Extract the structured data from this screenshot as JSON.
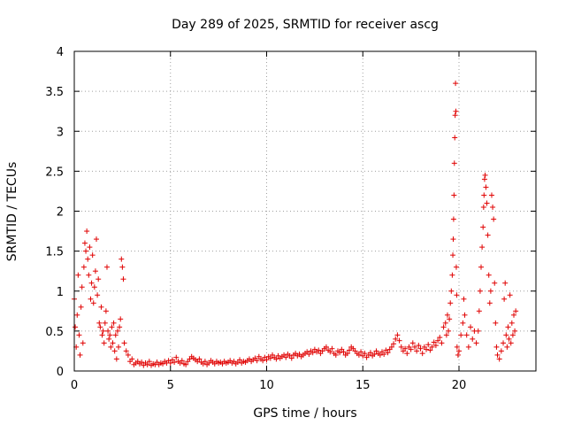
{
  "chart_data": {
    "type": "scatter",
    "title": "Day 289 of 2025, SRMTID for receiver ascg",
    "xlabel": "GPS time / hours",
    "ylabel": "SRMTID / TECUs",
    "xlim": [
      0,
      24
    ],
    "ylim": [
      0,
      4
    ],
    "x_ticks": [
      0,
      5,
      10,
      15,
      20
    ],
    "x_tick_labels": [
      "0",
      "5",
      "10",
      "15",
      "20"
    ],
    "y_ticks": [
      0,
      0.5,
      1,
      1.5,
      2,
      2.5,
      3,
      3.5,
      4
    ],
    "y_tick_labels": [
      "0",
      "0.5",
      "1",
      "1.5",
      "2",
      "2.5",
      "3",
      "3.5",
      "4"
    ],
    "grid": true,
    "marker": "+",
    "color": "#e00000",
    "series": [
      {
        "name": "ascg",
        "points": [
          [
            0.0,
            0.9
          ],
          [
            0.05,
            0.55
          ],
          [
            0.1,
            0.3
          ],
          [
            0.15,
            0.7
          ],
          [
            0.2,
            1.2
          ],
          [
            0.25,
            0.45
          ],
          [
            0.3,
            0.2
          ],
          [
            0.35,
            0.8
          ],
          [
            0.4,
            1.05
          ],
          [
            0.45,
            0.35
          ],
          [
            0.5,
            1.3
          ],
          [
            0.55,
            1.6
          ],
          [
            0.6,
            1.5
          ],
          [
            0.65,
            1.75
          ],
          [
            0.7,
            1.4
          ],
          [
            0.75,
            1.2
          ],
          [
            0.8,
            1.55
          ],
          [
            0.85,
            0.9
          ],
          [
            0.9,
            1.1
          ],
          [
            0.95,
            1.45
          ],
          [
            1.0,
            0.85
          ],
          [
            1.05,
            1.05
          ],
          [
            1.1,
            1.25
          ],
          [
            1.15,
            1.65
          ],
          [
            1.2,
            0.95
          ],
          [
            1.25,
            1.15
          ],
          [
            1.3,
            0.6
          ],
          [
            1.35,
            0.55
          ],
          [
            1.4,
            0.8
          ],
          [
            1.45,
            0.45
          ],
          [
            1.5,
            0.5
          ],
          [
            1.55,
            0.35
          ],
          [
            1.6,
            0.6
          ],
          [
            1.65,
            0.75
          ],
          [
            1.7,
            1.3
          ],
          [
            1.75,
            0.5
          ],
          [
            1.8,
            0.4
          ],
          [
            1.85,
            0.45
          ],
          [
            1.9,
            0.3
          ],
          [
            1.95,
            0.55
          ],
          [
            2.0,
            0.35
          ],
          [
            2.05,
            0.6
          ],
          [
            2.1,
            0.25
          ],
          [
            2.15,
            0.45
          ],
          [
            2.2,
            0.15
          ],
          [
            2.25,
            0.5
          ],
          [
            2.3,
            0.3
          ],
          [
            2.35,
            0.55
          ],
          [
            2.4,
            0.65
          ],
          [
            2.45,
            1.4
          ],
          [
            2.5,
            1.3
          ],
          [
            2.55,
            1.15
          ],
          [
            2.6,
            0.35
          ],
          [
            2.7,
            0.25
          ],
          [
            2.8,
            0.2
          ],
          [
            2.9,
            0.12
          ],
          [
            3.0,
            0.15
          ],
          [
            3.1,
            0.08
          ],
          [
            3.2,
            0.1
          ],
          [
            3.3,
            0.12
          ],
          [
            3.4,
            0.09
          ],
          [
            3.5,
            0.11
          ],
          [
            3.6,
            0.07
          ],
          [
            3.7,
            0.1
          ],
          [
            3.8,
            0.08
          ],
          [
            3.9,
            0.12
          ],
          [
            4.0,
            0.07
          ],
          [
            4.1,
            0.09
          ],
          [
            4.2,
            0.08
          ],
          [
            4.3,
            0.11
          ],
          [
            4.4,
            0.08
          ],
          [
            4.5,
            0.1
          ],
          [
            4.6,
            0.09
          ],
          [
            4.7,
            0.12
          ],
          [
            4.8,
            0.1
          ],
          [
            4.9,
            0.13
          ],
          [
            5.0,
            0.1
          ],
          [
            5.1,
            0.14
          ],
          [
            5.2,
            0.11
          ],
          [
            5.3,
            0.17
          ],
          [
            5.4,
            0.12
          ],
          [
            5.5,
            0.1
          ],
          [
            5.6,
            0.13
          ],
          [
            5.7,
            0.09
          ],
          [
            5.8,
            0.08
          ],
          [
            5.9,
            0.12
          ],
          [
            6.0,
            0.15
          ],
          [
            6.1,
            0.18
          ],
          [
            6.2,
            0.16
          ],
          [
            6.3,
            0.14
          ],
          [
            6.4,
            0.12
          ],
          [
            6.5,
            0.15
          ],
          [
            6.6,
            0.11
          ],
          [
            6.7,
            0.09
          ],
          [
            6.8,
            0.12
          ],
          [
            6.9,
            0.08
          ],
          [
            7.0,
            0.1
          ],
          [
            7.1,
            0.13
          ],
          [
            7.2,
            0.11
          ],
          [
            7.3,
            0.09
          ],
          [
            7.4,
            0.12
          ],
          [
            7.5,
            0.1
          ],
          [
            7.6,
            0.11
          ],
          [
            7.7,
            0.09
          ],
          [
            7.8,
            0.12
          ],
          [
            7.9,
            0.1
          ],
          [
            8.0,
            0.11
          ],
          [
            8.1,
            0.13
          ],
          [
            8.2,
            0.1
          ],
          [
            8.3,
            0.12
          ],
          [
            8.4,
            0.09
          ],
          [
            8.5,
            0.11
          ],
          [
            8.6,
            0.14
          ],
          [
            8.7,
            0.1
          ],
          [
            8.8,
            0.12
          ],
          [
            8.9,
            0.11
          ],
          [
            9.0,
            0.13
          ],
          [
            9.1,
            0.15
          ],
          [
            9.2,
            0.12
          ],
          [
            9.3,
            0.14
          ],
          [
            9.4,
            0.16
          ],
          [
            9.5,
            0.13
          ],
          [
            9.6,
            0.18
          ],
          [
            9.7,
            0.15
          ],
          [
            9.8,
            0.13
          ],
          [
            9.9,
            0.17
          ],
          [
            10.0,
            0.14
          ],
          [
            10.1,
            0.18
          ],
          [
            10.2,
            0.16
          ],
          [
            10.3,
            0.2
          ],
          [
            10.4,
            0.17
          ],
          [
            10.5,
            0.15
          ],
          [
            10.6,
            0.19
          ],
          [
            10.7,
            0.16
          ],
          [
            10.8,
            0.18
          ],
          [
            10.9,
            0.2
          ],
          [
            11.0,
            0.17
          ],
          [
            11.1,
            0.21
          ],
          [
            11.2,
            0.19
          ],
          [
            11.3,
            0.16
          ],
          [
            11.4,
            0.2
          ],
          [
            11.5,
            0.22
          ],
          [
            11.6,
            0.19
          ],
          [
            11.7,
            0.21
          ],
          [
            11.8,
            0.18
          ],
          [
            11.9,
            0.2
          ],
          [
            12.0,
            0.22
          ],
          [
            12.1,
            0.24
          ],
          [
            12.2,
            0.21
          ],
          [
            12.3,
            0.25
          ],
          [
            12.4,
            0.23
          ],
          [
            12.5,
            0.27
          ],
          [
            12.6,
            0.24
          ],
          [
            12.7,
            0.26
          ],
          [
            12.8,
            0.22
          ],
          [
            12.9,
            0.25
          ],
          [
            13.0,
            0.28
          ],
          [
            13.1,
            0.3
          ],
          [
            13.2,
            0.26
          ],
          [
            13.3,
            0.24
          ],
          [
            13.4,
            0.28
          ],
          [
            13.5,
            0.22
          ],
          [
            13.6,
            0.2
          ],
          [
            13.7,
            0.25
          ],
          [
            13.8,
            0.23
          ],
          [
            13.9,
            0.27
          ],
          [
            14.0,
            0.24
          ],
          [
            14.1,
            0.2
          ],
          [
            14.2,
            0.22
          ],
          [
            14.3,
            0.26
          ],
          [
            14.4,
            0.3
          ],
          [
            14.5,
            0.28
          ],
          [
            14.6,
            0.25
          ],
          [
            14.7,
            0.22
          ],
          [
            14.8,
            0.2
          ],
          [
            14.9,
            0.24
          ],
          [
            15.0,
            0.19
          ],
          [
            15.1,
            0.22
          ],
          [
            15.2,
            0.17
          ],
          [
            15.3,
            0.2
          ],
          [
            15.4,
            0.23
          ],
          [
            15.5,
            0.19
          ],
          [
            15.6,
            0.21
          ],
          [
            15.7,
            0.25
          ],
          [
            15.8,
            0.22
          ],
          [
            15.9,
            0.2
          ],
          [
            16.0,
            0.24
          ],
          [
            16.1,
            0.21
          ],
          [
            16.2,
            0.26
          ],
          [
            16.3,
            0.23
          ],
          [
            16.4,
            0.27
          ],
          [
            16.5,
            0.3
          ],
          [
            16.6,
            0.34
          ],
          [
            16.7,
            0.4
          ],
          [
            16.8,
            0.45
          ],
          [
            16.9,
            0.38
          ],
          [
            17.0,
            0.3
          ],
          [
            17.1,
            0.25
          ],
          [
            17.2,
            0.28
          ],
          [
            17.3,
            0.22
          ],
          [
            17.4,
            0.3
          ],
          [
            17.5,
            0.27
          ],
          [
            17.6,
            0.35
          ],
          [
            17.7,
            0.3
          ],
          [
            17.8,
            0.25
          ],
          [
            17.9,
            0.32
          ],
          [
            18.0,
            0.28
          ],
          [
            18.1,
            0.22
          ],
          [
            18.2,
            0.3
          ],
          [
            18.3,
            0.27
          ],
          [
            18.4,
            0.33
          ],
          [
            18.5,
            0.26
          ],
          [
            18.6,
            0.3
          ],
          [
            18.7,
            0.36
          ],
          [
            18.8,
            0.32
          ],
          [
            18.9,
            0.38
          ],
          [
            19.0,
            0.42
          ],
          [
            19.1,
            0.35
          ],
          [
            19.2,
            0.55
          ],
          [
            19.3,
            0.6
          ],
          [
            19.35,
            0.45
          ],
          [
            19.4,
            0.7
          ],
          [
            19.45,
            0.5
          ],
          [
            19.5,
            0.65
          ],
          [
            19.55,
            0.85
          ],
          [
            19.6,
            1.0
          ],
          [
            19.65,
            1.2
          ],
          [
            19.68,
            1.45
          ],
          [
            19.7,
            1.65
          ],
          [
            19.72,
            1.9
          ],
          [
            19.74,
            2.2
          ],
          [
            19.76,
            2.6
          ],
          [
            19.78,
            2.92
          ],
          [
            19.8,
            3.2
          ],
          [
            19.82,
            3.6
          ],
          [
            19.84,
            3.25
          ],
          [
            19.86,
            1.3
          ],
          [
            19.88,
            0.95
          ],
          [
            19.9,
            0.3
          ],
          [
            19.95,
            0.2
          ],
          [
            20.0,
            0.25
          ],
          [
            20.1,
            0.45
          ],
          [
            20.2,
            0.6
          ],
          [
            20.25,
            0.9
          ],
          [
            20.3,
            0.7
          ],
          [
            20.4,
            0.45
          ],
          [
            20.5,
            0.3
          ],
          [
            20.6,
            0.55
          ],
          [
            20.7,
            0.4
          ],
          [
            20.8,
            0.5
          ],
          [
            20.9,
            0.35
          ],
          [
            21.0,
            0.5
          ],
          [
            21.05,
            0.75
          ],
          [
            21.1,
            1.0
          ],
          [
            21.15,
            1.3
          ],
          [
            21.2,
            1.55
          ],
          [
            21.25,
            1.8
          ],
          [
            21.28,
            2.05
          ],
          [
            21.3,
            2.2
          ],
          [
            21.33,
            2.4
          ],
          [
            21.36,
            2.45
          ],
          [
            21.4,
            2.3
          ],
          [
            21.45,
            2.1
          ],
          [
            21.5,
            1.7
          ],
          [
            21.55,
            1.2
          ],
          [
            21.6,
            0.85
          ],
          [
            21.65,
            1.0
          ],
          [
            21.7,
            2.2
          ],
          [
            21.75,
            2.05
          ],
          [
            21.8,
            1.9
          ],
          [
            21.85,
            1.1
          ],
          [
            21.9,
            0.6
          ],
          [
            21.95,
            0.3
          ],
          [
            22.0,
            0.2
          ],
          [
            22.1,
            0.15
          ],
          [
            22.2,
            0.25
          ],
          [
            22.3,
            0.35
          ],
          [
            22.35,
            0.9
          ],
          [
            22.4,
            1.1
          ],
          [
            22.45,
            0.45
          ],
          [
            22.5,
            0.3
          ],
          [
            22.55,
            0.55
          ],
          [
            22.6,
            0.4
          ],
          [
            22.65,
            0.95
          ],
          [
            22.7,
            0.35
          ],
          [
            22.75,
            0.6
          ],
          [
            22.8,
            0.45
          ],
          [
            22.85,
            0.7
          ],
          [
            22.9,
            0.5
          ],
          [
            22.95,
            0.75
          ]
        ]
      }
    ]
  }
}
